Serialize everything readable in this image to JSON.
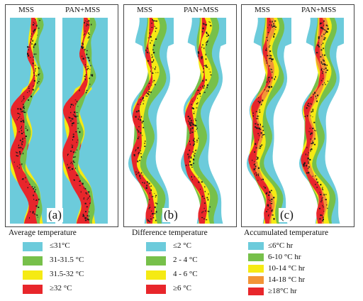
{
  "colors": {
    "cyan": "#6ccbdb",
    "green": "#77c04a",
    "yellow": "#f5ea14",
    "orange": "#f29437",
    "red": "#e8262b",
    "dots": "#1a1a1a"
  },
  "panels": [
    {
      "letter": "(a)",
      "map_labels": [
        "MSS",
        "PAN+MSS"
      ],
      "background": "cyan",
      "palette": [
        "cyan",
        "green",
        "yellow",
        "red"
      ]
    },
    {
      "letter": "(b)",
      "map_labels": [
        "MSS",
        "PAN+MSS"
      ],
      "background": "white",
      "palette": [
        "cyan",
        "green",
        "yellow",
        "red"
      ]
    },
    {
      "letter": "(c)",
      "map_labels": [
        "MSS",
        "PAN+MSS"
      ],
      "background": "white",
      "palette": [
        "cyan",
        "green",
        "yellow",
        "orange",
        "red"
      ]
    }
  ],
  "legends": [
    {
      "title": "Average temperature",
      "items": [
        {
          "color": "cyan",
          "label": "≤31°C"
        },
        {
          "color": "green",
          "label": "31-31.5 °C"
        },
        {
          "color": "yellow",
          "label": "31.5-32 °C"
        },
        {
          "color": "red",
          "label": "≥32 °C"
        }
      ]
    },
    {
      "title": "Difference temperature",
      "items": [
        {
          "color": "cyan",
          "label": "≤2 °C"
        },
        {
          "color": "green",
          "label": "2 - 4 °C"
        },
        {
          "color": "yellow",
          "label": "4 - 6 °C"
        },
        {
          "color": "red",
          "label": "≥6 °C"
        }
      ]
    },
    {
      "title": "Accumulated temperature",
      "items": [
        {
          "color": "cyan",
          "label": "≤6°C hr"
        },
        {
          "color": "green",
          "label": "6-10 °C hr"
        },
        {
          "color": "yellow",
          "label": "10-14 °C hr"
        },
        {
          "color": "orange",
          "label": "14-18 °C hr"
        },
        {
          "color": "red",
          "label": "≥18°C hr"
        }
      ]
    }
  ]
}
